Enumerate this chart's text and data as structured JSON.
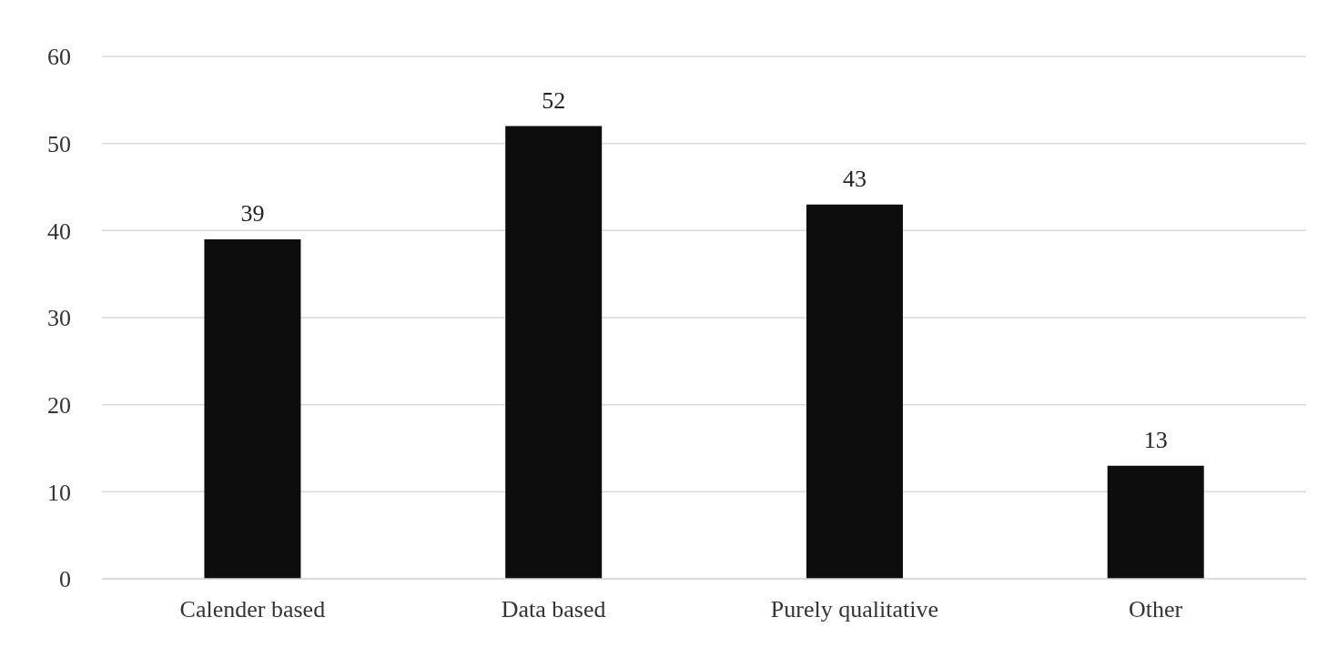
{
  "chart_data": {
    "type": "bar",
    "categories": [
      "Calender based",
      "Data based",
      "Purely qualitative",
      "Other"
    ],
    "values": [
      39,
      52,
      43,
      13
    ],
    "color": "#0d0d0d",
    "ylim": [
      0,
      60
    ],
    "yticks": [
      0,
      10,
      20,
      30,
      40,
      50,
      60
    ],
    "grid": "y",
    "data_labels": true
  }
}
